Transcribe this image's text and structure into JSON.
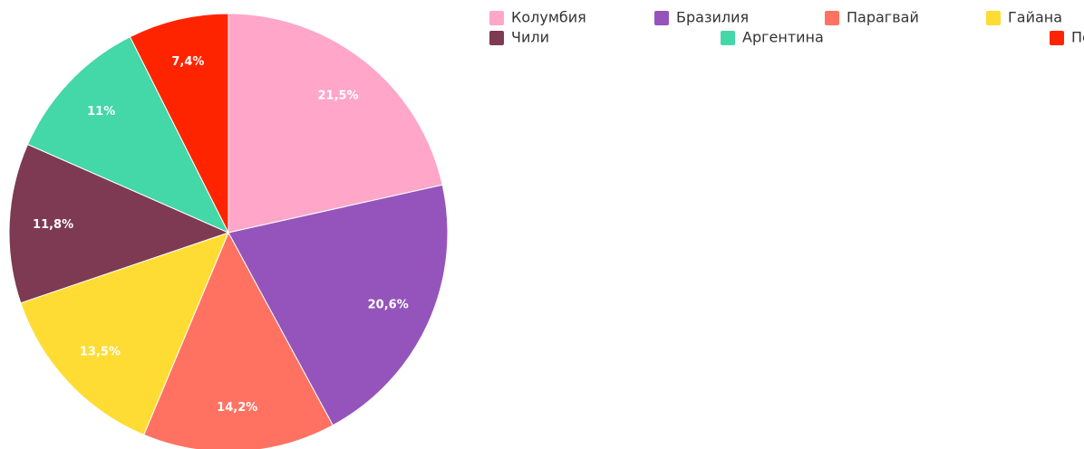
{
  "chart_data": {
    "type": "pie",
    "categories": [
      "Колумбия",
      "Бразилия",
      "Парагвай",
      "Гайана",
      "Чили",
      "Аргентина",
      "Перу"
    ],
    "values": [
      21.5,
      20.6,
      14.2,
      13.5,
      11.8,
      11,
      7.4
    ],
    "value_labels": [
      "21,5%",
      "20,6%",
      "14,2%",
      "13,5%",
      "11,8%",
      "11%",
      "7,4%"
    ],
    "colors": [
      "#ffa6c9",
      "#9554bb",
      "#ff7262",
      "#ffdc33",
      "#7e3a52",
      "#44d7a8",
      "#ff2400"
    ]
  }
}
